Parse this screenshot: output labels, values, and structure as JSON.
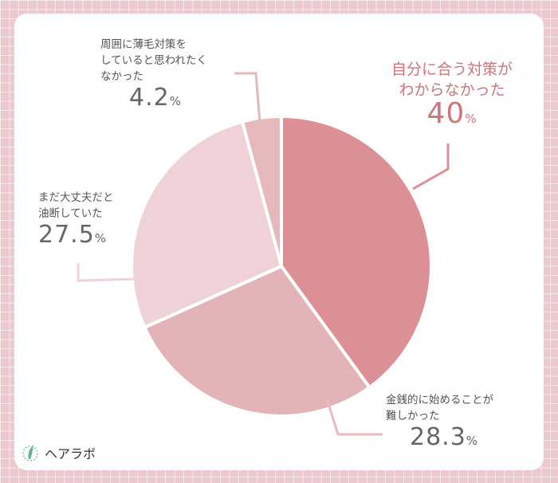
{
  "chart_data": {
    "type": "pie",
    "title": "",
    "slices": [
      {
        "label": "自分に合う対策がわからなかった",
        "lines": [
          "自分に合う対策が",
          "わからなかった"
        ],
        "value": 40,
        "display": "40",
        "color": "#dc8f94"
      },
      {
        "label": "金銭的に始めることが難しかった",
        "lines": [
          "金銭的に始めることが",
          "難しかった"
        ],
        "value": 28.3,
        "display": "28.3",
        "color": "#e2b4b8"
      },
      {
        "label": "まだ大丈夫だと油断していた",
        "lines": [
          "まだ大丈夫だと",
          "油断していた"
        ],
        "value": 27.5,
        "display": "27.5",
        "color": "#efd2d7"
      },
      {
        "label": "周囲に薄毛対策をしていると思われたくなかった",
        "lines": [
          "周囲に薄毛対策を",
          "していると思われたく",
          "なかった"
        ],
        "value": 4.2,
        "display": "4.2",
        "color": "#e5b8bc"
      }
    ],
    "unit": "%",
    "start": "top",
    "direction": "clockwise"
  },
  "logo": {
    "text": "ヘアラボ",
    "color": "#5fb38e"
  }
}
